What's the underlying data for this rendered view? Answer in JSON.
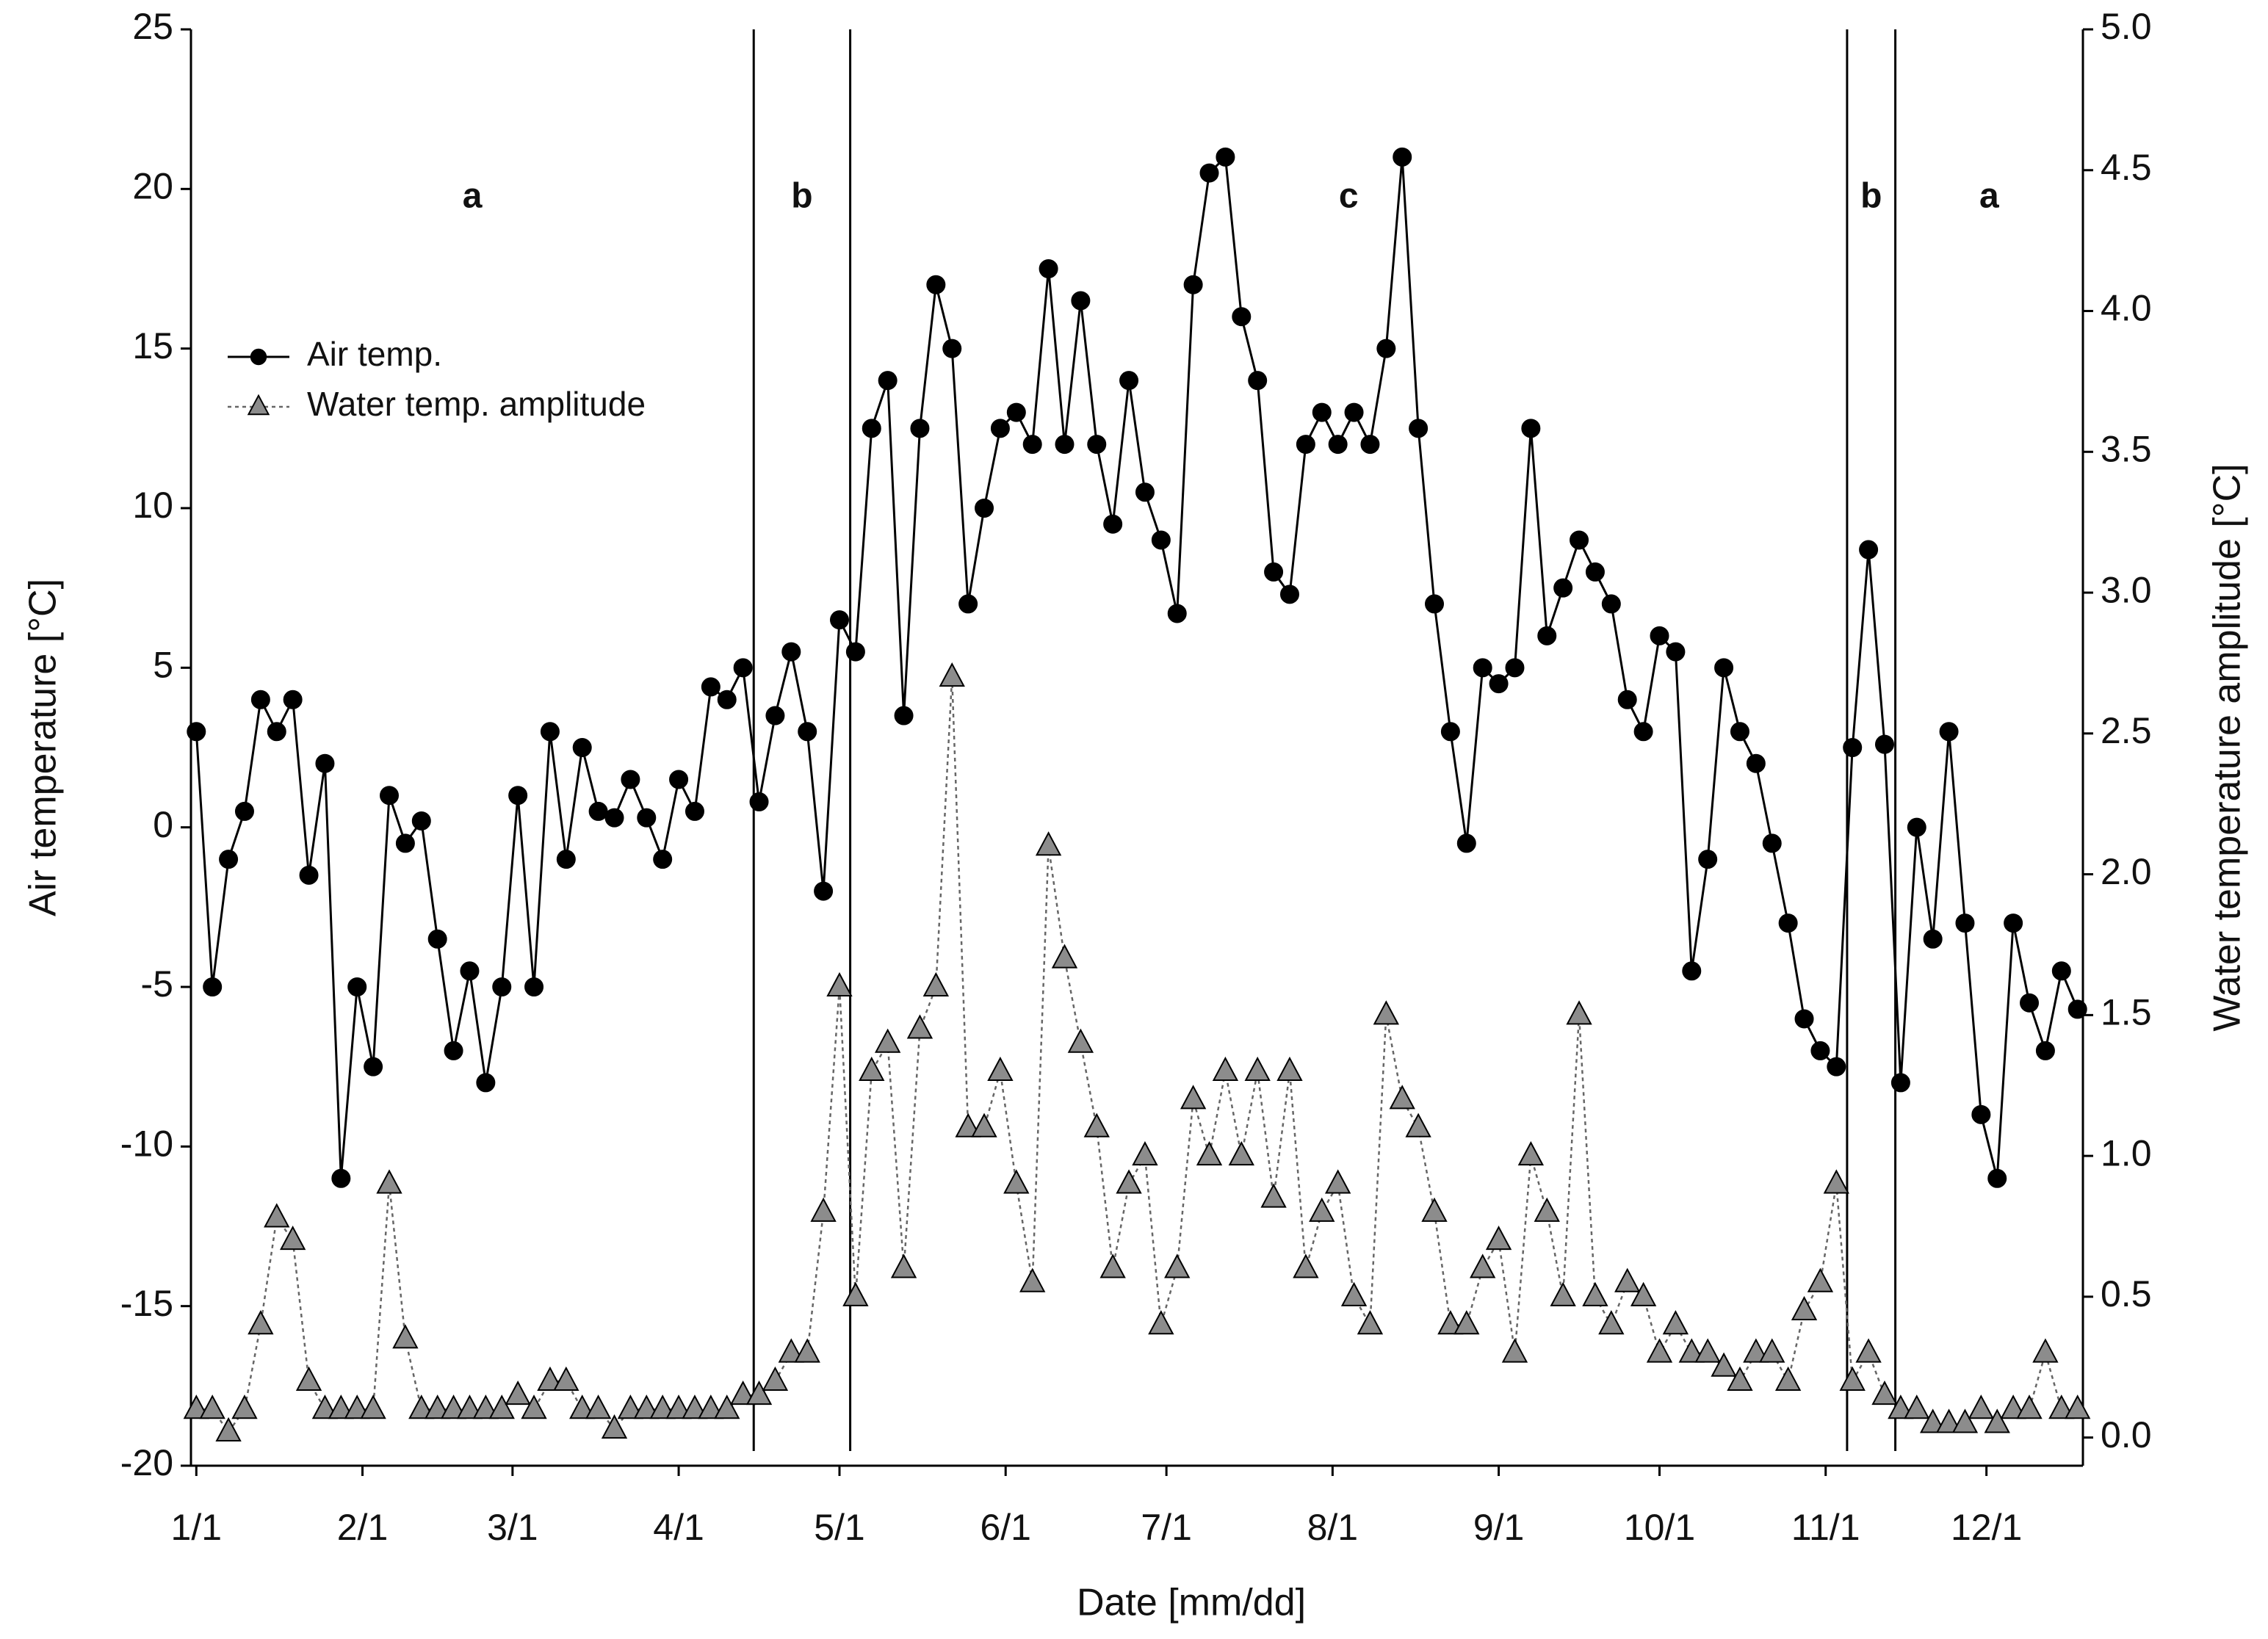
{
  "chart_data": {
    "type": "line",
    "x_label": "Date [mm/dd]",
    "y_label": "Air temperature [°C]",
    "y2_label": "Water temperature amplitude [°C]",
    "xlim": [
      0,
      353
    ],
    "xticks": [
      {
        "value": 1,
        "label": "1/1"
      },
      {
        "value": 32,
        "label": "2/1"
      },
      {
        "value": 60,
        "label": "3/1"
      },
      {
        "value": 91,
        "label": "4/1"
      },
      {
        "value": 121,
        "label": "5/1"
      },
      {
        "value": 152,
        "label": "6/1"
      },
      {
        "value": 182,
        "label": "7/1"
      },
      {
        "value": 213,
        "label": "8/1"
      },
      {
        "value": 244,
        "label": "9/1"
      },
      {
        "value": 274,
        "label": "10/1"
      },
      {
        "value": 305,
        "label": "11/1"
      },
      {
        "value": 335,
        "label": "12/1"
      }
    ],
    "ylim": [
      -20,
      25
    ],
    "yticks": [
      -20,
      -15,
      -10,
      -5,
      0,
      5,
      10,
      15,
      20,
      25
    ],
    "y2lim": [
      -0.1,
      5.0
    ],
    "y2ticks": [
      {
        "value": 0,
        "label": "0.0"
      },
      {
        "value": 0.5,
        "label": "0.5"
      },
      {
        "value": 1,
        "label": "1.0"
      },
      {
        "value": 1.5,
        "label": "1.5"
      },
      {
        "value": 2,
        "label": "2.0"
      },
      {
        "value": 2.5,
        "label": "2.5"
      },
      {
        "value": 3,
        "label": "3.0"
      },
      {
        "value": 3.5,
        "label": "3.5"
      },
      {
        "value": 4,
        "label": "4.0"
      },
      {
        "value": 4.5,
        "label": "4.5"
      },
      {
        "value": 5,
        "label": "5.0"
      }
    ],
    "legend": "upper left",
    "phase_boundaries": [
      105,
      123,
      309,
      318
    ],
    "annotations": [
      "a",
      "b",
      "c",
      "b",
      "a"
    ],
    "x": [
      1,
      4,
      7,
      10,
      13,
      16,
      19,
      22,
      25,
      28,
      31,
      34,
      37,
      40,
      43,
      46,
      49,
      52,
      55,
      58,
      61,
      64,
      67,
      70,
      73,
      76,
      79,
      82,
      85,
      88,
      91,
      94,
      97,
      100,
      103,
      106,
      109,
      112,
      115,
      118,
      121,
      124,
      127,
      130,
      133,
      136,
      139,
      142,
      145,
      148,
      151,
      154,
      157,
      160,
      163,
      166,
      169,
      172,
      175,
      178,
      181,
      184,
      187,
      190,
      193,
      196,
      199,
      202,
      205,
      208,
      211,
      214,
      217,
      220,
      223,
      226,
      229,
      232,
      235,
      238,
      241,
      244,
      247,
      250,
      253,
      256,
      259,
      262,
      265,
      268,
      271,
      274,
      277,
      280,
      283,
      286,
      289,
      292,
      295,
      298,
      301,
      304,
      307,
      310,
      313,
      316,
      319,
      322,
      325,
      328,
      331,
      334,
      337,
      340,
      343,
      346,
      349,
      352
    ],
    "series": [
      {
        "name": "Air temp.",
        "color": "#000000",
        "line_style": "solid",
        "marker": "circle",
        "values": [
          3,
          -5,
          -1,
          0.5,
          4,
          3,
          4,
          -1.5,
          2,
          -11,
          -5,
          -7.5,
          1,
          -0.5,
          0.2,
          -3.5,
          -7,
          -4.5,
          -8,
          -5,
          1,
          -5,
          3,
          -1,
          2.5,
          0.5,
          0.3,
          1.5,
          0.3,
          -1,
          1.5,
          0.5,
          4.4,
          4,
          5,
          0.8,
          3.5,
          5.5,
          3,
          -2,
          6.5,
          5.5,
          12.5,
          14,
          3.5,
          12.5,
          17,
          15,
          7,
          10,
          12.5,
          13,
          12,
          17.5,
          12,
          16.5,
          12,
          9.5,
          14,
          10.5,
          9,
          6.7,
          17,
          20.5,
          21,
          16,
          14,
          8,
          7.3,
          12,
          13,
          12,
          13,
          12,
          15,
          21,
          12.5,
          7,
          3,
          -0.5,
          5,
          4.5,
          5,
          12.5,
          6,
          7.5,
          9,
          8,
          7,
          4,
          3,
          6,
          5.5,
          -4.5,
          -1,
          5,
          3,
          2,
          -0.5,
          -3,
          -6,
          -7,
          -7.5,
          2.5,
          8.7,
          2.6,
          -8,
          0,
          -3.5,
          3,
          -3,
          -9,
          -11,
          -3,
          -5.5,
          -7,
          -4.5,
          -5.7
        ]
      },
      {
        "name": "Water temp. amplitude",
        "color": "#8c8c8c",
        "line_style": "dotted",
        "marker": "triangle",
        "axis": "y2",
        "values": [
          0.1,
          0.1,
          0.02,
          0.1,
          0.4,
          0.78,
          0.7,
          0.2,
          0.1,
          0.1,
          0.1,
          0.1,
          0.9,
          0.35,
          0.1,
          0.1,
          0.1,
          0.1,
          0.1,
          0.1,
          0.15,
          0.1,
          0.2,
          0.2,
          0.1,
          0.1,
          0.03,
          0.1,
          0.1,
          0.1,
          0.1,
          0.1,
          0.1,
          0.1,
          0.15,
          0.15,
          0.2,
          0.3,
          0.3,
          0.8,
          1.6,
          0.5,
          1.3,
          1.4,
          0.6,
          1.45,
          1.6,
          2.7,
          1.1,
          1.1,
          1.3,
          0.9,
          0.55,
          2.1,
          1.7,
          1.4,
          1.1,
          0.6,
          0.9,
          1.0,
          0.4,
          0.6,
          1.2,
          1.0,
          1.3,
          1.0,
          1.3,
          0.85,
          1.3,
          0.6,
          0.8,
          0.9,
          0.5,
          0.4,
          1.5,
          1.2,
          1.1,
          0.8,
          0.4,
          0.4,
          0.6,
          0.7,
          0.3,
          1.0,
          0.8,
          0.5,
          1.5,
          0.5,
          0.4,
          0.55,
          0.5,
          0.3,
          0.4,
          0.3,
          0.3,
          0.25,
          0.2,
          0.3,
          0.3,
          0.2,
          0.45,
          0.55,
          0.9,
          0.2,
          0.3,
          0.15,
          0.1,
          0.1,
          0.05,
          0.05,
          0.05,
          0.1,
          0.05,
          0.1,
          0.1,
          0.3,
          0.1,
          0.1
        ]
      }
    ]
  }
}
